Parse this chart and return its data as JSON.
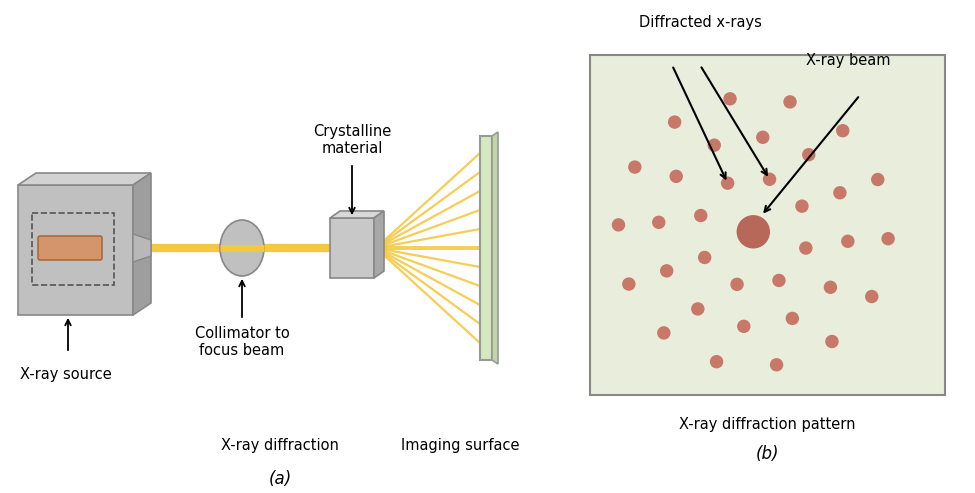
{
  "bg_color": "#ffffff",
  "panel_b_bg": "#e8eddc",
  "beam_color": "#f5c842",
  "box_face": "#c8c8c8",
  "box_top": "#d8d8d8",
  "box_side": "#a8a8a8",
  "box_edge": "#888888",
  "dot_color": "#c87868",
  "center_dot_color": "#b86858",
  "label_fontsize": 10.5,
  "panel_a_label": "(a)",
  "panel_b_label": "(b)",
  "label_xray_source": "X-ray source",
  "label_collimator": "Collimator to\nfocus beam",
  "label_xray_diff": "X-ray diffraction",
  "label_imaging": "Imaging surface",
  "label_crystalline": "Crystalline\nmaterial",
  "label_xray_beam": "X-ray beam",
  "label_diffracted": "Diffracted x-rays",
  "label_pattern": "X-ray diffraction pattern"
}
